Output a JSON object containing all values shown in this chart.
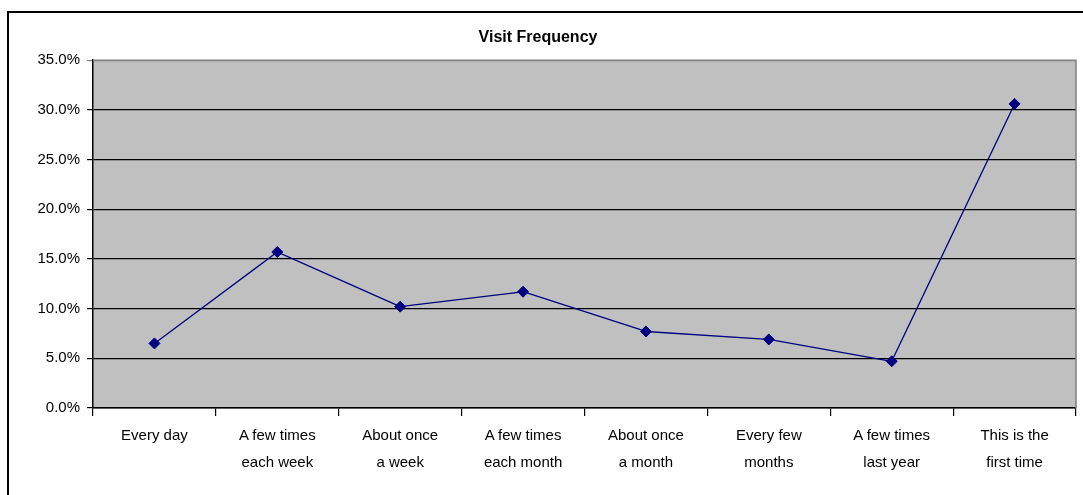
{
  "chart_data": {
    "type": "line",
    "title": "Visit Frequency",
    "categories": [
      "Every day",
      "A few times each week",
      "About once a week",
      "A few times each month",
      "About once a month",
      "Every few months",
      "A few times last year",
      "This is the first time"
    ],
    "values": [
      6.5,
      15.7,
      10.2,
      11.7,
      7.7,
      6.9,
      4.7,
      30.6
    ],
    "color": "#000080",
    "ylim": [
      0,
      35
    ],
    "yticks": [
      {
        "value": 0,
        "label": "0.0%"
      },
      {
        "value": 5,
        "label": "5.0%"
      },
      {
        "value": 10,
        "label": "10.0%"
      },
      {
        "value": 15,
        "label": "15.0%"
      },
      {
        "value": 20,
        "label": "20.0%"
      },
      {
        "value": 25,
        "label": "25.0%"
      },
      {
        "value": 30,
        "label": "30.0%"
      },
      {
        "value": 35,
        "label": "35.0%"
      }
    ],
    "grid": "y",
    "marker": "diamond",
    "line_style": "solid"
  }
}
